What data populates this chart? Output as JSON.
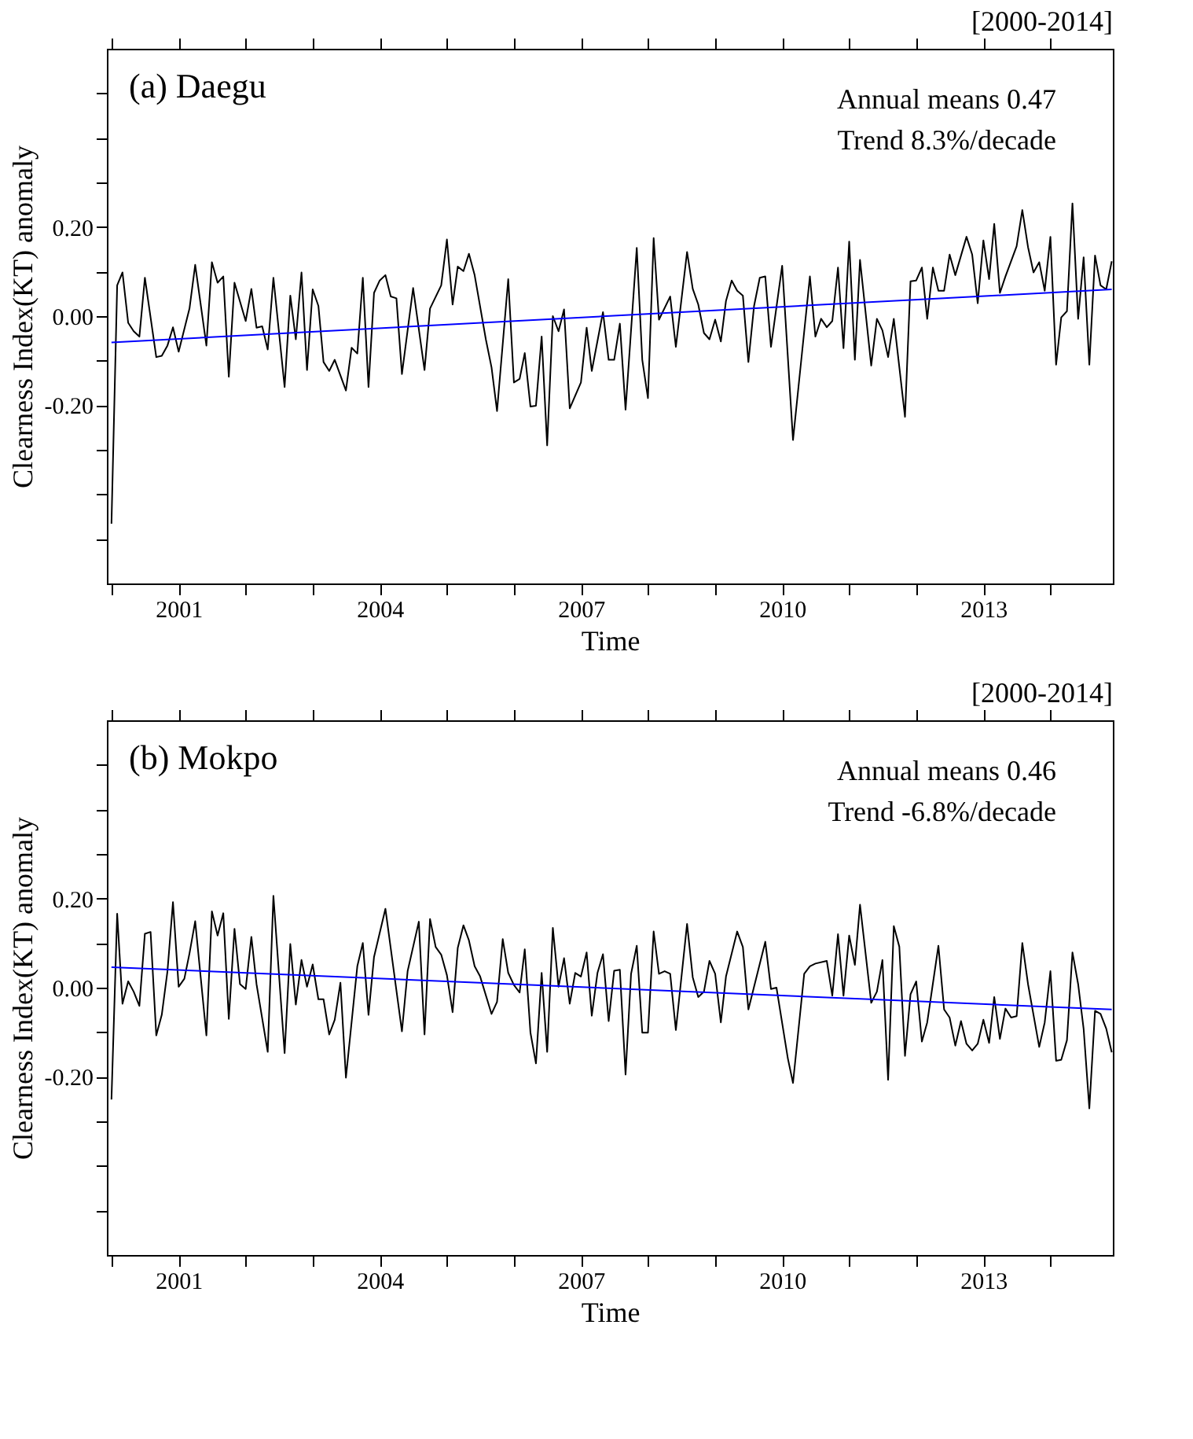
{
  "chart_data": [
    {
      "type": "line",
      "title": "(a) Daegu",
      "subtitle": "[2000-2014]",
      "xlabel": "Time",
      "ylabel": "Clearness Index(KT) anomaly",
      "annotations": [
        "Annual means 0.47",
        "Trend 8.3%/decade"
      ],
      "xlim": [
        "1999-12-07",
        "2014-12-07"
      ],
      "xticks": [
        {
          "value": "2000",
          "label": null
        },
        "2001",
        {
          "value": "2002",
          "label": null
        },
        {
          "value": "2003",
          "label": null
        },
        "2004",
        {
          "value": "2005",
          "label": null
        },
        {
          "value": "2006",
          "label": null
        },
        "2007",
        {
          "value": "2008",
          "label": null
        },
        {
          "value": "2009",
          "label": null
        },
        "2010",
        {
          "value": "2011",
          "label": null
        },
        {
          "value": "2012",
          "label": null
        },
        "2013",
        {
          "value": "2014",
          "label": null
        }
      ],
      "ylim": [
        -0.6,
        0.6
      ],
      "yticks": [
        {
          "value": -0.5,
          "label": null
        },
        {
          "value": -0.4,
          "label": null
        },
        {
          "value": -0.3,
          "label": null
        },
        {
          "value": -0.2,
          "label": "-0.20"
        },
        {
          "value": -0.1,
          "label": null
        },
        {
          "value": 0,
          "label": "0.00"
        },
        {
          "value": 0.1,
          "label": null
        },
        {
          "value": 0.2,
          "label": "0.20"
        },
        {
          "value": 0.3,
          "label": null
        },
        {
          "value": 0.4,
          "label": null
        },
        {
          "value": 0.5,
          "label": null
        }
      ],
      "grid": false,
      "series": [
        {
          "color": "#000000",
          "x": [
            "2000-01",
            "2000-02",
            "2000-03",
            "2000-04",
            "2000-05",
            "2000-06",
            "2000-07",
            "2000-09",
            "2000-10",
            "2000-11",
            "2000-12",
            "2001-01",
            "2001-03",
            "2001-04",
            "2001-06",
            "2001-07",
            "2001-08",
            "2001-09",
            "2001-10",
            "2001-11",
            "2002-01",
            "2002-02",
            "2002-03",
            "2002-04",
            "2002-05",
            "2002-06",
            "2002-08",
            "2002-09",
            "2002-10",
            "2002-11",
            "2002-12",
            "2003-01",
            "2003-02",
            "2003-03",
            "2003-04",
            "2003-05",
            "2003-07",
            "2003-08",
            "2003-09",
            "2003-10",
            "2003-11",
            "2003-12",
            "2004-01",
            "2004-02",
            "2004-03",
            "2004-04",
            "2004-05",
            "2004-07",
            "2004-09",
            "2004-10",
            "2004-12",
            "2005-01",
            "2005-02",
            "2005-03",
            "2005-04",
            "2005-05",
            "2005-06",
            "2005-08",
            "2005-09",
            "2005-10",
            "2005-12",
            "2006-01",
            "2006-02",
            "2006-03",
            "2006-04",
            "2006-05",
            "2006-06",
            "2006-07",
            "2006-08",
            "2006-09",
            "2006-10",
            "2006-11",
            "2007-01",
            "2007-02",
            "2007-03",
            "2007-05",
            "2007-06",
            "2007-07",
            "2007-08",
            "2007-09",
            "2007-11",
            "2007-12",
            "2008-01",
            "2008-02",
            "2008-03",
            "2008-05",
            "2008-06",
            "2008-08",
            "2008-09",
            "2008-10",
            "2008-11",
            "2008-12",
            "2009-01",
            "2009-02",
            "2009-03",
            "2009-04",
            "2009-05",
            "2009-06",
            "2009-07",
            "2009-08",
            "2009-09",
            "2009-10",
            "2009-11",
            "2010-01",
            "2010-03",
            "2010-06",
            "2010-07",
            "2010-08",
            "2010-09",
            "2010-10",
            "2010-11",
            "2010-12",
            "2011-01",
            "2011-02",
            "2011-03",
            "2011-05",
            "2011-06",
            "2011-07",
            "2011-08",
            "2011-09",
            "2011-11",
            "2011-12",
            "2012-01",
            "2012-02",
            "2012-03",
            "2012-04",
            "2012-05",
            "2012-06",
            "2012-07",
            "2012-08",
            "2012-10",
            "2012-11",
            "2012-12",
            "2013-01",
            "2013-02",
            "2013-03",
            "2013-04",
            "2013-05",
            "2013-07",
            "2013-08",
            "2013-09",
            "2013-10",
            "2013-11",
            "2013-12",
            "2014-01",
            "2014-02",
            "2014-03",
            "2014-04",
            "2014-05",
            "2014-06",
            "2014-07",
            "2014-08",
            "2014-09",
            "2014-10",
            "2014-11",
            "2014-12"
          ],
          "values": [
            -0.466,
            0.069,
            0.098,
            -0.015,
            -0.034,
            -0.046,
            0.086,
            -0.092,
            -0.089,
            -0.066,
            -0.025,
            -0.08,
            0.017,
            0.115,
            -0.066,
            0.121,
            0.075,
            0.089,
            -0.136,
            0.075,
            -0.011,
            0.061,
            -0.026,
            -0.023,
            -0.075,
            0.086,
            -0.159,
            0.046,
            -0.052,
            0.098,
            -0.121,
            0.06,
            0.023,
            -0.103,
            -0.123,
            -0.098,
            -0.167,
            -0.071,
            -0.084,
            0.086,
            -0.159,
            0.052,
            0.08,
            0.092,
            0.044,
            0.04,
            -0.13,
            0.063,
            -0.121,
            0.017,
            0.069,
            0.172,
            0.026,
            0.111,
            0.101,
            0.14,
            0.092,
            -0.052,
            -0.115,
            -0.213,
            0.083,
            -0.149,
            -0.141,
            -0.083,
            -0.203,
            -0.201,
            -0.046,
            -0.29,
            0.0,
            -0.034,
            0.015,
            -0.207,
            -0.149,
            -0.026,
            -0.123,
            0.009,
            -0.098,
            -0.098,
            -0.017,
            -0.21,
            0.153,
            -0.098,
            -0.184,
            0.175,
            -0.008,
            0.044,
            -0.069,
            0.144,
            0.061,
            0.026,
            -0.038,
            -0.052,
            -0.008,
            -0.057,
            0.034,
            0.08,
            0.057,
            0.046,
            -0.103,
            0.023,
            0.086,
            0.089,
            -0.069,
            0.113,
            -0.278,
            0.089,
            -0.046,
            -0.006,
            -0.025,
            -0.011,
            0.109,
            -0.072,
            0.167,
            -0.098,
            0.126,
            -0.111,
            -0.006,
            -0.032,
            -0.092,
            -0.006,
            -0.226,
            0.078,
            0.08,
            0.109,
            -0.006,
            0.109,
            0.057,
            0.057,
            0.138,
            0.092,
            0.178,
            0.138,
            0.029,
            0.17,
            0.083,
            0.207,
            0.052,
            0.089,
            0.157,
            0.238,
            0.155,
            0.098,
            0.121,
            0.057,
            0.178,
            -0.109,
            -0.003,
            0.011,
            0.253,
            -0.006,
            0.132,
            -0.109,
            0.136,
            0.069,
            0.06,
            0.123
          ]
        },
        {
          "type": "line",
          "color": "#0000ff",
          "x": [
            "2000-01",
            "2014-12"
          ],
          "values": [
            -0.059,
            0.06
          ]
        }
      ]
    },
    {
      "type": "line",
      "title": "(b) Mokpo",
      "subtitle": "[2000-2014]",
      "xlabel": "Time",
      "ylabel": "Clearness Index(KT) anomaly",
      "annotations": [
        "Annual means 0.46",
        "Trend -6.8%/decade"
      ],
      "xlim": [
        "1999-12-07",
        "2014-12-07"
      ],
      "xticks": [
        {
          "value": "2000",
          "label": null
        },
        "2001",
        {
          "value": "2002",
          "label": null
        },
        {
          "value": "2003",
          "label": null
        },
        "2004",
        {
          "value": "2005",
          "label": null
        },
        {
          "value": "2006",
          "label": null
        },
        "2007",
        {
          "value": "2008",
          "label": null
        },
        {
          "value": "2009",
          "label": null
        },
        "2010",
        {
          "value": "2011",
          "label": null
        },
        {
          "value": "2012",
          "label": null
        },
        "2013",
        {
          "value": "2014",
          "label": null
        }
      ],
      "ylim": [
        -0.6,
        0.6
      ],
      "yticks": [
        {
          "value": -0.5,
          "label": null
        },
        {
          "value": -0.4,
          "label": null
        },
        {
          "value": -0.3,
          "label": null
        },
        {
          "value": -0.2,
          "label": "-0.20"
        },
        {
          "value": -0.1,
          "label": null
        },
        {
          "value": 0,
          "label": "0.00"
        },
        {
          "value": 0.1,
          "label": null
        },
        {
          "value": 0.2,
          "label": "0.20"
        },
        {
          "value": 0.3,
          "label": null
        },
        {
          "value": 0.4,
          "label": null
        },
        {
          "value": 0.5,
          "label": null
        }
      ],
      "grid": false,
      "series": [
        {
          "color": "#000000",
          "x": [
            "2000-01",
            "2000-02",
            "2000-03",
            "2000-04",
            "2000-05",
            "2000-06",
            "2000-07",
            "2000-08",
            "2000-09",
            "2000-10",
            "2000-11",
            "2000-12",
            "2001-01",
            "2001-02",
            "2001-03",
            "2001-04",
            "2001-06",
            "2001-07",
            "2001-08",
            "2001-09",
            "2001-10",
            "2001-11",
            "2001-12",
            "2002-01",
            "2002-02",
            "2002-03",
            "2002-05",
            "2002-06",
            "2002-08",
            "2002-09",
            "2002-10",
            "2002-11",
            "2002-12",
            "2003-01",
            "2003-02",
            "2003-03",
            "2003-04",
            "2003-05",
            "2003-06",
            "2003-07",
            "2003-09",
            "2003-10",
            "2003-11",
            "2003-12",
            "2004-02",
            "2004-05",
            "2004-06",
            "2004-08",
            "2004-09",
            "2004-10",
            "2004-11",
            "2004-12",
            "2005-01",
            "2005-02",
            "2005-03",
            "2005-04",
            "2005-05",
            "2005-06",
            "2005-07",
            "2005-09",
            "2005-10",
            "2005-11",
            "2005-12",
            "2006-01",
            "2006-02",
            "2006-03",
            "2006-04",
            "2006-05",
            "2006-06",
            "2006-07",
            "2006-08",
            "2006-09",
            "2006-10",
            "2006-11",
            "2006-12",
            "2007-01",
            "2007-02",
            "2007-03",
            "2007-04",
            "2007-05",
            "2007-06",
            "2007-07",
            "2007-08",
            "2007-09",
            "2007-10",
            "2007-11",
            "2007-12",
            "2008-01",
            "2008-02",
            "2008-03",
            "2008-04",
            "2008-05",
            "2008-06",
            "2008-08",
            "2008-09",
            "2008-10",
            "2008-11",
            "2008-12",
            "2009-01",
            "2009-02",
            "2009-03",
            "2009-05",
            "2009-06",
            "2009-07",
            "2009-10",
            "2009-11",
            "2009-12",
            "2010-02",
            "2010-03",
            "2010-05",
            "2010-06",
            "2010-07",
            "2010-09",
            "2010-10",
            "2010-11",
            "2010-12",
            "2011-01",
            "2011-02",
            "2011-03",
            "2011-05",
            "2011-06",
            "2011-07",
            "2011-08",
            "2011-09",
            "2011-10",
            "2011-11",
            "2011-12",
            "2012-01",
            "2012-02",
            "2012-03",
            "2012-05",
            "2012-06",
            "2012-07",
            "2012-08",
            "2012-09",
            "2012-10",
            "2012-11",
            "2012-12",
            "2013-01",
            "2013-02",
            "2013-03",
            "2013-04",
            "2013-05",
            "2013-06",
            "2013-07",
            "2013-08",
            "2013-09",
            "2013-11",
            "2013-12",
            "2014-01",
            "2014-02",
            "2014-03",
            "2014-04",
            "2014-05",
            "2014-06",
            "2014-07",
            "2014-08",
            "2014-09",
            "2014-10",
            "2014-11",
            "2014-12"
          ],
          "values": [
            -0.251,
            0.166,
            -0.036,
            0.014,
            -0.009,
            -0.041,
            0.121,
            0.125,
            -0.107,
            -0.061,
            0.037,
            0.192,
            0.002,
            0.02,
            0.077,
            0.149,
            -0.107,
            0.171,
            0.117,
            0.167,
            -0.07,
            0.132,
            0.008,
            -0.003,
            0.114,
            0.008,
            -0.144,
            0.206,
            -0.147,
            0.098,
            -0.038,
            0.062,
            0.002,
            0.052,
            -0.026,
            -0.026,
            -0.105,
            -0.072,
            0.011,
            -0.202,
            0.048,
            0.1,
            -0.061,
            0.069,
            0.177,
            -0.098,
            0.037,
            0.148,
            -0.105,
            0.154,
            0.091,
            0.074,
            0.028,
            -0.055,
            0.089,
            0.14,
            0.106,
            0.048,
            0.025,
            -0.059,
            -0.032,
            0.109,
            0.033,
            0.006,
            -0.011,
            0.086,
            -0.101,
            -0.17,
            0.033,
            -0.144,
            0.134,
            0.002,
            0.066,
            -0.036,
            0.033,
            0.025,
            0.079,
            -0.063,
            0.033,
            0.075,
            -0.075,
            0.038,
            0.04,
            -0.195,
            0.031,
            0.094,
            -0.101,
            -0.101,
            0.126,
            0.031,
            0.037,
            0.031,
            -0.095,
            0.143,
            0.023,
            -0.021,
            -0.009,
            0.06,
            0.031,
            -0.078,
            0.025,
            0.126,
            0.091,
            -0.049,
            0.103,
            -0.003,
            0.0,
            -0.159,
            -0.214,
            0.031,
            0.048,
            0.054,
            0.06,
            -0.018,
            0.12,
            -0.018,
            0.117,
            0.051,
            0.186,
            -0.034,
            -0.009,
            0.062,
            -0.207,
            0.138,
            0.092,
            -0.153,
            -0.015,
            0.014,
            -0.121,
            -0.078,
            0.094,
            -0.049,
            -0.067,
            -0.13,
            -0.075,
            -0.126,
            -0.141,
            -0.126,
            -0.072,
            -0.124,
            -0.021,
            -0.115,
            -0.047,
            -0.067,
            -0.064,
            0.1,
            0.008,
            -0.133,
            -0.078,
            0.037,
            -0.164,
            -0.162,
            -0.118,
            0.079,
            0.008,
            -0.093,
            -0.271,
            -0.052,
            -0.059,
            -0.092,
            -0.145
          ]
        },
        {
          "type": "line",
          "color": "#0000ff",
          "x": [
            "2000-01",
            "2014-12"
          ],
          "values": [
            0.046,
            -0.049
          ]
        }
      ]
    }
  ]
}
